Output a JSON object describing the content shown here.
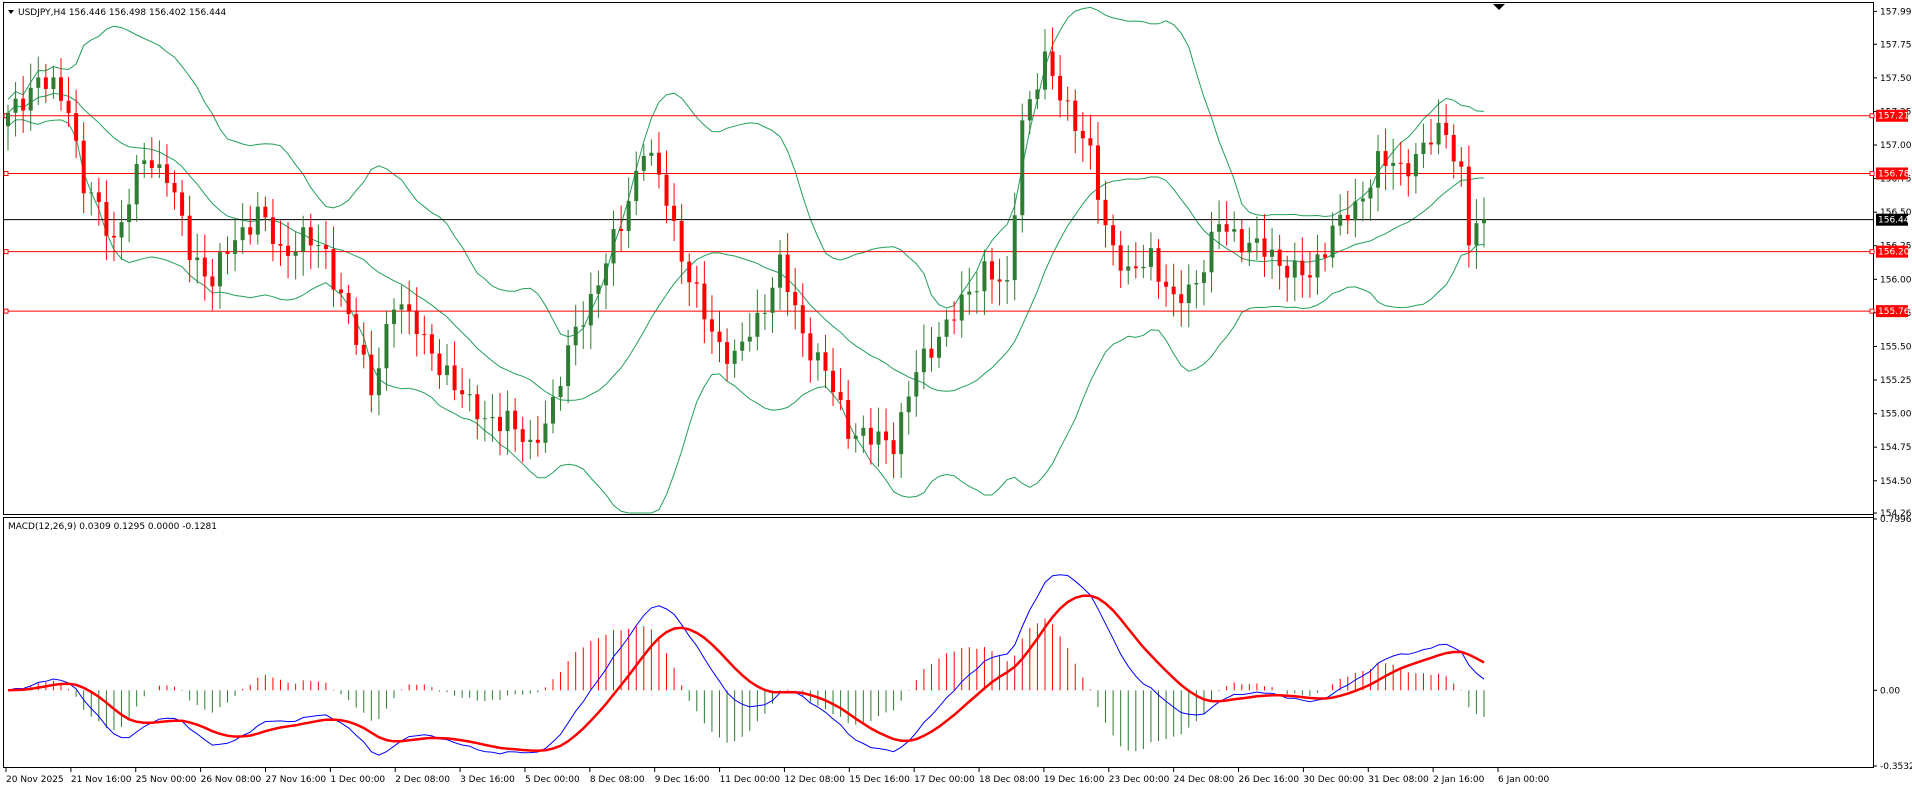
{
  "app": {
    "platform": "MetaTrader chart window"
  },
  "main_pane": {
    "header": "USDJPY,H4  156.446 156.498 156.402 156.444",
    "y_ticks": [
      "157.995",
      "157.750",
      "157.500",
      "157.250",
      "157.000",
      "156.750",
      "156.500",
      "156.250",
      "156.000",
      "155.750",
      "155.500",
      "155.250",
      "155.000",
      "154.750",
      "154.500",
      "154.260"
    ],
    "current_price": "156.444",
    "current_price_value": 156.444,
    "levels": [
      {
        "label": "157.218",
        "value": 157.218
      },
      {
        "label": "156.788",
        "value": 156.788
      },
      {
        "label": "156.206",
        "value": 156.206
      },
      {
        "label": "155.763",
        "value": 155.763
      }
    ],
    "y_range": [
      154.26,
      158.05
    ]
  },
  "indicator_pane": {
    "header": "MACD(12,26,9) 0.0309 0.1295 0.0000 -0.1281",
    "y_ticks": [
      "0.7996",
      "0.00",
      "-0.3532"
    ],
    "y_range": [
      -0.3532,
      0.7996
    ]
  },
  "time_labels": [
    "20 Nov 2025",
    "21 Nov 16:00",
    "25 Nov 00:00",
    "26 Nov 08:00",
    "27 Nov 16:00",
    "1 Dec 00:00",
    "2 Dec 08:00",
    "3 Dec 16:00",
    "5 Dec 00:00",
    "8 Dec 08:00",
    "9 Dec 16:00",
    "11 Dec 00:00",
    "12 Dec 08:00",
    "15 Dec 16:00",
    "17 Dec 00:00",
    "18 Dec 08:00",
    "19 Dec 16:00",
    "23 Dec 00:00",
    "24 Dec 08:00",
    "26 Dec 16:00",
    "30 Dec 00:00",
    "31 Dec 08:00",
    "2 Jan 16:00",
    "6 Jan 00:00"
  ],
  "colors": {
    "bull": "#2e7d32",
    "bear": "#ff0000",
    "level_line": "#ff0000",
    "band": "#22a05a",
    "macd_main": "#0000ff",
    "macd_signal": "#ff0000",
    "price_tag": "#000000"
  },
  "chart_data": {
    "type": "candlestick",
    "symbol": "USDJPY",
    "timeframe": "H4",
    "close_anchors": [
      [
        0,
        157.2
      ],
      [
        4,
        157.5
      ],
      [
        8,
        157.3
      ],
      [
        10,
        156.7
      ],
      [
        14,
        156.3
      ],
      [
        18,
        156.9
      ],
      [
        21,
        156.8
      ],
      [
        24,
        156.2
      ],
      [
        27,
        156.0
      ],
      [
        30,
        156.3
      ],
      [
        33,
        156.5
      ],
      [
        36,
        156.2
      ],
      [
        39,
        156.3
      ],
      [
        42,
        156.2
      ],
      [
        45,
        155.7
      ],
      [
        48,
        155.2
      ],
      [
        51,
        155.8
      ],
      [
        54,
        155.7
      ],
      [
        57,
        155.3
      ],
      [
        60,
        155.2
      ],
      [
        63,
        154.9
      ],
      [
        66,
        155.0
      ],
      [
        69,
        154.7
      ],
      [
        72,
        155.1
      ],
      [
        75,
        155.6
      ],
      [
        78,
        156.0
      ],
      [
        81,
        156.4
      ],
      [
        84,
        157.0
      ],
      [
        87,
        156.6
      ],
      [
        90,
        156.0
      ],
      [
        93,
        155.6
      ],
      [
        96,
        155.4
      ],
      [
        99,
        155.7
      ],
      [
        102,
        156.1
      ],
      [
        105,
        155.6
      ],
      [
        108,
        155.3
      ],
      [
        111,
        154.9
      ],
      [
        114,
        154.8
      ],
      [
        117,
        154.8
      ],
      [
        120,
        155.3
      ],
      [
        123,
        155.6
      ],
      [
        126,
        155.8
      ],
      [
        129,
        156.1
      ],
      [
        132,
        155.9
      ],
      [
        134,
        157.2
      ],
      [
        137,
        157.6
      ],
      [
        140,
        157.3
      ],
      [
        143,
        156.9
      ],
      [
        145,
        156.4
      ],
      [
        148,
        156.0
      ],
      [
        151,
        156.2
      ],
      [
        154,
        155.8
      ],
      [
        157,
        156.0
      ],
      [
        160,
        156.4
      ],
      [
        163,
        156.3
      ],
      [
        166,
        156.2
      ],
      [
        169,
        156.1
      ],
      [
        172,
        156.0
      ],
      [
        175,
        156.4
      ],
      [
        178,
        156.5
      ],
      [
        181,
        156.9
      ],
      [
        184,
        156.8
      ],
      [
        187,
        157.0
      ],
      [
        190,
        157.1
      ],
      [
        192,
        156.8
      ],
      [
        193,
        156.3
      ],
      [
        195,
        156.444
      ]
    ],
    "candle_count": 196,
    "bollinger": {
      "upper": "upper band",
      "middle": "middle band",
      "lower": "lower band"
    },
    "macd": {
      "fast": 12,
      "slow": 26,
      "signal": 9,
      "main": 0.0309,
      "signal_value": 0.1295,
      "histogram_extremes": [
        0.0,
        -0.1281
      ]
    }
  }
}
